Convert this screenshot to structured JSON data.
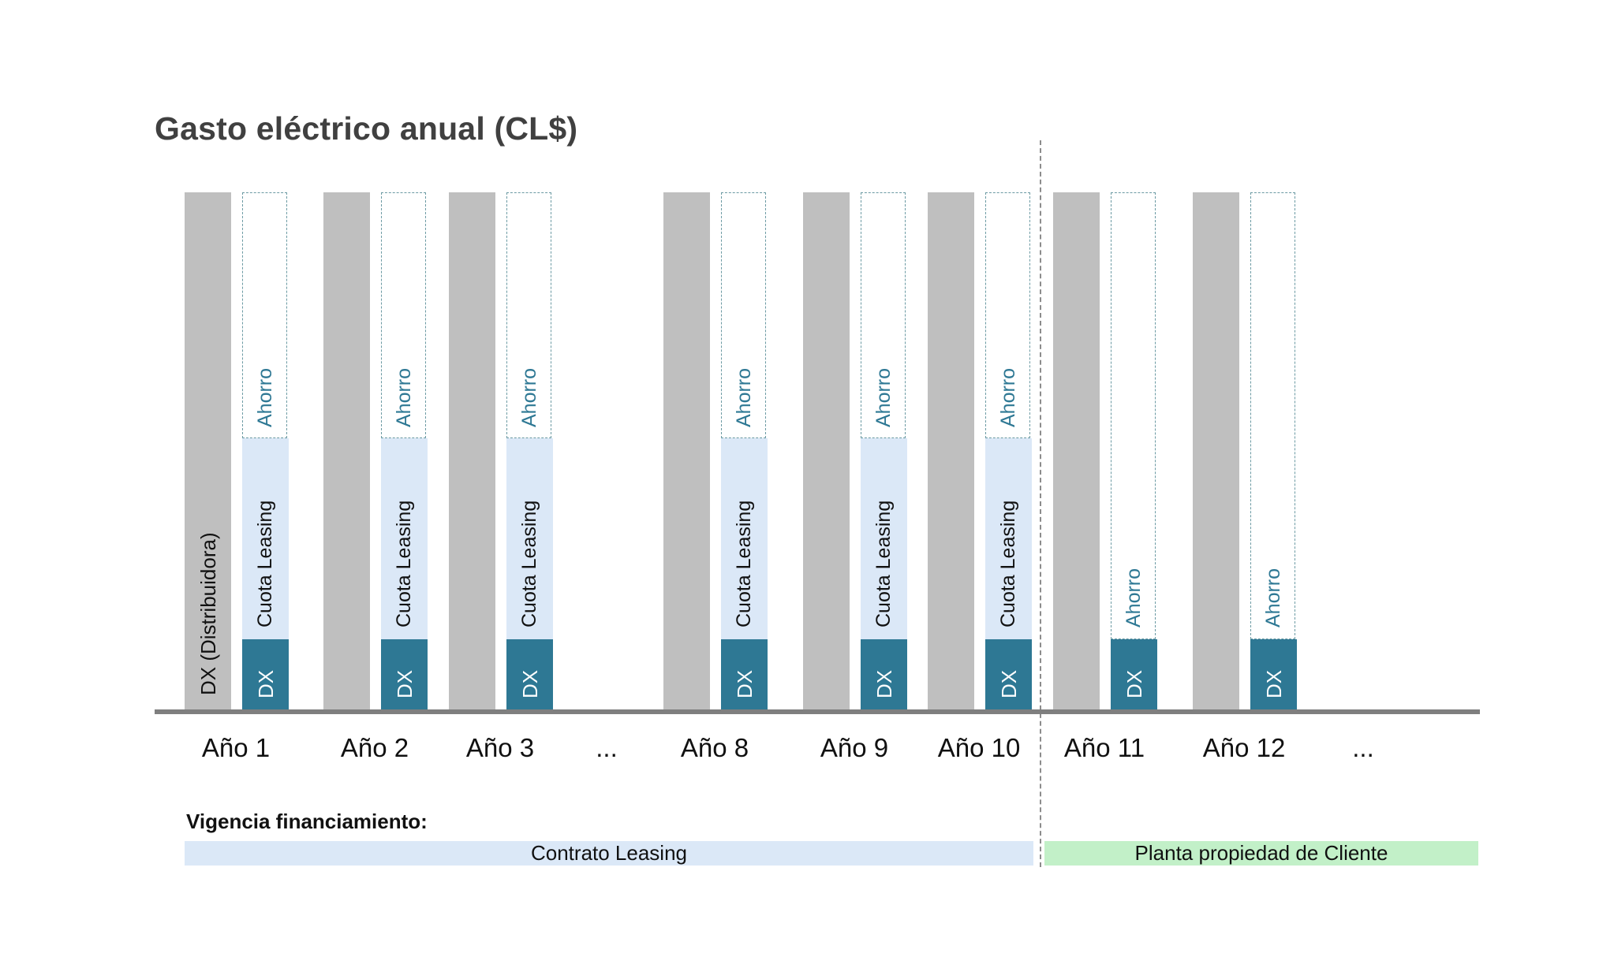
{
  "title": "Gasto eléctrico anual (CL$)",
  "legend_labels": {
    "distribuidora": "DX (Distribuidora)",
    "dx": "DX",
    "cuota": "Cuota Leasing",
    "ahorro": "Ahorro"
  },
  "years": [
    {
      "label": "Año 1",
      "phase": "leasing",
      "show_distribuidora": true
    },
    {
      "label": "Año 2",
      "phase": "leasing"
    },
    {
      "label": "Año 3",
      "phase": "leasing"
    },
    {
      "label": "...",
      "ellipsis": true
    },
    {
      "label": "Año 8",
      "phase": "leasing"
    },
    {
      "label": "Año 9",
      "phase": "leasing"
    },
    {
      "label": "Año 10",
      "phase": "leasing"
    },
    {
      "label": "Año 11",
      "phase": "owned"
    },
    {
      "label": "Año 12",
      "phase": "owned"
    },
    {
      "label": "...",
      "ellipsis": true
    }
  ],
  "financing": {
    "label": "Vigencia financiamiento:",
    "leasing_band": "Contrato Leasing",
    "owned_band": "Planta propiedad de Cliente"
  },
  "colors": {
    "grid_bar": "#bfbfbf",
    "dx": "#2e7894",
    "cuota": "#dbe8f7",
    "ahorro_border": "#6b9aa3",
    "leasing_band": "#dbe8f7",
    "owned_band": "#c2f0c8"
  }
}
